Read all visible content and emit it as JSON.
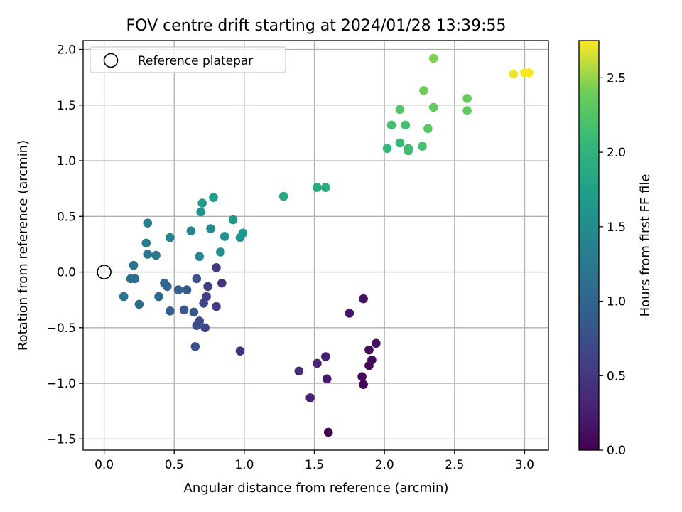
{
  "chart_data": {
    "type": "scatter",
    "title": "FOV centre drift starting at 2024/01/28 13:39:55",
    "xlabel": "Angular distance from reference (arcmin)",
    "ylabel": "Rotation from reference (arcmin)",
    "xlim": [
      -0.15,
      3.17
    ],
    "ylim": [
      -1.6,
      2.08
    ],
    "xticks": [
      0.0,
      0.5,
      1.0,
      1.5,
      2.0,
      2.5,
      3.0
    ],
    "xtick_labels": [
      "0.0",
      "0.5",
      "1.0",
      "1.5",
      "2.0",
      "2.5",
      "3.0"
    ],
    "yticks": [
      -1.5,
      -1.0,
      -0.5,
      0.0,
      0.5,
      1.0,
      1.5,
      2.0
    ],
    "ytick_labels": [
      "−1.5",
      "−1.0",
      "−0.5",
      "0.0",
      "0.5",
      "1.0",
      "1.5",
      "2.0"
    ],
    "grid": true,
    "legend": {
      "placement": "upper-left",
      "entries": [
        {
          "label": "Reference platepar",
          "marker": "open-circle"
        }
      ]
    },
    "reference_point": {
      "x": 0.0,
      "y": 0.0
    },
    "colorbar": {
      "label": "Hours from first FF file",
      "colormap": "viridis",
      "range": [
        0.0,
        2.75
      ],
      "ticks": [
        0.0,
        0.5,
        1.0,
        1.5,
        2.0,
        2.5
      ],
      "tick_labels": [
        "0.0",
        "0.5",
        "1.0",
        "1.5",
        "2.0",
        "2.5"
      ]
    },
    "points": [
      {
        "x": 1.6,
        "y": -1.44,
        "c": 0.0
      },
      {
        "x": 1.85,
        "y": -1.01,
        "c": 0.03
      },
      {
        "x": 1.84,
        "y": -0.94,
        "c": 0.05
      },
      {
        "x": 1.89,
        "y": -0.84,
        "c": 0.07
      },
      {
        "x": 1.91,
        "y": -0.79,
        "c": 0.08
      },
      {
        "x": 1.89,
        "y": -0.7,
        "c": 0.1
      },
      {
        "x": 1.94,
        "y": -0.64,
        "c": 0.12
      },
      {
        "x": 1.85,
        "y": -0.24,
        "c": 0.14
      },
      {
        "x": 1.75,
        "y": -0.37,
        "c": 0.17
      },
      {
        "x": 1.59,
        "y": -0.96,
        "c": 0.22
      },
      {
        "x": 1.58,
        "y": -0.76,
        "c": 0.26
      },
      {
        "x": 1.47,
        "y": -1.13,
        "c": 0.3
      },
      {
        "x": 1.52,
        "y": -0.82,
        "c": 0.33
      },
      {
        "x": 1.39,
        "y": -0.89,
        "c": 0.37
      },
      {
        "x": 0.97,
        "y": -0.71,
        "c": 0.42
      },
      {
        "x": 0.84,
        "y": -0.1,
        "c": 0.46
      },
      {
        "x": 0.8,
        "y": 0.04,
        "c": 0.5
      },
      {
        "x": 0.8,
        "y": -0.31,
        "c": 0.54
      },
      {
        "x": 0.74,
        "y": -0.13,
        "c": 0.58
      },
      {
        "x": 0.73,
        "y": -0.22,
        "c": 0.62
      },
      {
        "x": 0.71,
        "y": -0.28,
        "c": 0.65
      },
      {
        "x": 0.72,
        "y": -0.5,
        "c": 0.68
      },
      {
        "x": 0.68,
        "y": -0.44,
        "c": 0.71
      },
      {
        "x": 0.66,
        "y": -0.48,
        "c": 0.74
      },
      {
        "x": 0.65,
        "y": -0.67,
        "c": 0.77
      },
      {
        "x": 0.66,
        "y": -0.06,
        "c": 0.8
      },
      {
        "x": 0.64,
        "y": -0.36,
        "c": 0.83
      },
      {
        "x": 0.57,
        "y": -0.34,
        "c": 0.86
      },
      {
        "x": 0.59,
        "y": -0.16,
        "c": 0.89
      },
      {
        "x": 0.53,
        "y": -0.16,
        "c": 0.92
      },
      {
        "x": 0.47,
        "y": -0.35,
        "c": 0.95
      },
      {
        "x": 0.45,
        "y": -0.13,
        "c": 0.98
      },
      {
        "x": 0.43,
        "y": -0.1,
        "c": 1.01
      },
      {
        "x": 0.39,
        "y": -0.22,
        "c": 1.04
      },
      {
        "x": 0.25,
        "y": -0.29,
        "c": 1.07
      },
      {
        "x": 0.22,
        "y": -0.06,
        "c": 1.1
      },
      {
        "x": 0.19,
        "y": -0.06,
        "c": 1.13
      },
      {
        "x": 0.14,
        "y": -0.22,
        "c": 1.16
      },
      {
        "x": 0.21,
        "y": 0.06,
        "c": 1.19
      },
      {
        "x": 0.31,
        "y": 0.16,
        "c": 1.22
      },
      {
        "x": 0.37,
        "y": 0.15,
        "c": 1.25
      },
      {
        "x": 0.3,
        "y": 0.26,
        "c": 1.28
      },
      {
        "x": 0.31,
        "y": 0.44,
        "c": 1.31
      },
      {
        "x": 0.47,
        "y": 0.31,
        "c": 1.37
      },
      {
        "x": 0.62,
        "y": 0.37,
        "c": 1.41
      },
      {
        "x": 0.68,
        "y": 0.14,
        "c": 1.44
      },
      {
        "x": 0.76,
        "y": 0.39,
        "c": 1.48
      },
      {
        "x": 0.83,
        "y": 0.18,
        "c": 1.52
      },
      {
        "x": 0.86,
        "y": 0.32,
        "c": 1.56
      },
      {
        "x": 0.97,
        "y": 0.31,
        "c": 1.6
      },
      {
        "x": 0.99,
        "y": 0.35,
        "c": 1.62
      },
      {
        "x": 0.92,
        "y": 0.47,
        "c": 1.64
      },
      {
        "x": 0.69,
        "y": 0.54,
        "c": 1.6
      },
      {
        "x": 0.7,
        "y": 0.62,
        "c": 1.67
      },
      {
        "x": 0.78,
        "y": 0.67,
        "c": 1.72
      },
      {
        "x": 1.28,
        "y": 0.68,
        "c": 1.85
      },
      {
        "x": 1.52,
        "y": 0.76,
        "c": 1.88
      },
      {
        "x": 1.58,
        "y": 0.76,
        "c": 1.9
      },
      {
        "x": 2.02,
        "y": 1.11,
        "c": 2.05
      },
      {
        "x": 2.11,
        "y": 1.16,
        "c": 2.08
      },
      {
        "x": 2.17,
        "y": 1.11,
        "c": 2.1
      },
      {
        "x": 2.17,
        "y": 1.09,
        "c": 2.12
      },
      {
        "x": 2.05,
        "y": 1.32,
        "c": 2.14
      },
      {
        "x": 2.15,
        "y": 1.32,
        "c": 2.16
      },
      {
        "x": 2.27,
        "y": 1.13,
        "c": 2.18
      },
      {
        "x": 2.11,
        "y": 1.46,
        "c": 2.26
      },
      {
        "x": 2.31,
        "y": 1.29,
        "c": 2.28
      },
      {
        "x": 2.35,
        "y": 1.48,
        "c": 2.32
      },
      {
        "x": 2.59,
        "y": 1.45,
        "c": 2.33
      },
      {
        "x": 2.59,
        "y": 1.56,
        "c": 2.36
      },
      {
        "x": 2.28,
        "y": 1.63,
        "c": 2.41
      },
      {
        "x": 2.35,
        "y": 1.92,
        "c": 2.45
      },
      {
        "x": 2.92,
        "y": 1.78,
        "c": 2.72
      },
      {
        "x": 3.0,
        "y": 1.79,
        "c": 2.73
      },
      {
        "x": 3.03,
        "y": 1.79,
        "c": 2.75
      }
    ]
  }
}
